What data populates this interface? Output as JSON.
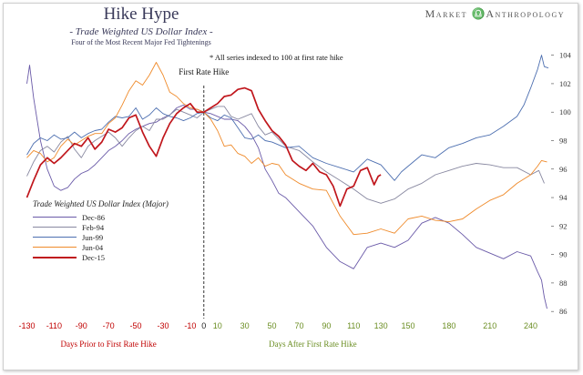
{
  "brand": {
    "left": "Market",
    "right": "Anthropology"
  },
  "chart_data": {
    "type": "line",
    "title": "Hike Hype",
    "subtitle": "- Trade Weighted US Dollar Index -",
    "note": "Four of the Most Recent Major Fed Tightenings",
    "annotation": "* All series indexed to 100 at first rate hike",
    "event_label": "First Rate Hike",
    "event_x": 0,
    "xlim": [
      -135,
      255
    ],
    "ylim": [
      85.5,
      105
    ],
    "x_ticks": [
      -130,
      -110,
      -90,
      -70,
      -50,
      -30,
      -10,
      0,
      10,
      30,
      50,
      70,
      90,
      110,
      130,
      150,
      180,
      210,
      240
    ],
    "y_ticks": [
      86,
      88,
      90,
      92,
      94,
      96,
      98,
      100,
      102,
      104
    ],
    "xlabel_left": "Days Prior to First Rate Hike",
    "xlabel_right": "Days After First Rate Hike",
    "legend_title": "Trade Weighted US Dollar Index (Major)",
    "legend_position": "middle-left",
    "colors": {
      "negative_axis": "#c00000",
      "positive_axis": "#6b8e23"
    },
    "series": [
      {
        "name": "Dec-86",
        "color": "#6a5aa8",
        "width": 0.9,
        "points": [
          [
            -130,
            102
          ],
          [
            -128,
            103.3
          ],
          [
            -125,
            101
          ],
          [
            -120,
            98
          ],
          [
            -115,
            96
          ],
          [
            -110,
            94.8
          ],
          [
            -105,
            94.5
          ],
          [
            -100,
            94.7
          ],
          [
            -95,
            95.3
          ],
          [
            -90,
            95.7
          ],
          [
            -85,
            95.9
          ],
          [
            -80,
            96.3
          ],
          [
            -75,
            96.8
          ],
          [
            -70,
            97.3
          ],
          [
            -65,
            97.6
          ],
          [
            -60,
            98
          ],
          [
            -55,
            98.5
          ],
          [
            -50,
            98.8
          ],
          [
            -45,
            99
          ],
          [
            -40,
            99.2
          ],
          [
            -35,
            99.3
          ],
          [
            -30,
            99.6
          ],
          [
            -25,
            99.8
          ],
          [
            -20,
            100.3
          ],
          [
            -15,
            100.5
          ],
          [
            -10,
            100.2
          ],
          [
            -5,
            100.2
          ],
          [
            0,
            100
          ],
          [
            5,
            99.9
          ],
          [
            10,
            99.7
          ],
          [
            15,
            99.5
          ],
          [
            20,
            99.5
          ],
          [
            25,
            99.4
          ],
          [
            30,
            99
          ],
          [
            35,
            98.4
          ],
          [
            40,
            97.5
          ],
          [
            45,
            96
          ],
          [
            50,
            95.2
          ],
          [
            55,
            94.3
          ],
          [
            60,
            94
          ],
          [
            70,
            93
          ],
          [
            80,
            92
          ],
          [
            90,
            90.5
          ],
          [
            100,
            89.5
          ],
          [
            110,
            89
          ],
          [
            120,
            90.5
          ],
          [
            130,
            90.8
          ],
          [
            140,
            90.5
          ],
          [
            150,
            91
          ],
          [
            160,
            92.2
          ],
          [
            170,
            92.6
          ],
          [
            180,
            92.2
          ],
          [
            190,
            91.4
          ],
          [
            200,
            90.5
          ],
          [
            210,
            90.1
          ],
          [
            220,
            89.7
          ],
          [
            230,
            90.2
          ],
          [
            240,
            89.9
          ],
          [
            245,
            88.8
          ],
          [
            248,
            88.2
          ],
          [
            250,
            87
          ],
          [
            252,
            86.2
          ]
        ]
      },
      {
        "name": "Feb-94",
        "color": "#8888a0",
        "width": 0.9,
        "points": [
          [
            -130,
            95.5
          ],
          [
            -125,
            96.5
          ],
          [
            -120,
            97.3
          ],
          [
            -115,
            97.6
          ],
          [
            -110,
            97.2
          ],
          [
            -105,
            97.9
          ],
          [
            -100,
            98.3
          ],
          [
            -95,
            97.4
          ],
          [
            -90,
            96.8
          ],
          [
            -85,
            97.6
          ],
          [
            -80,
            98
          ],
          [
            -75,
            98.3
          ],
          [
            -70,
            98.6
          ],
          [
            -65,
            98.2
          ],
          [
            -60,
            97.6
          ],
          [
            -55,
            98.2
          ],
          [
            -50,
            98.7
          ],
          [
            -45,
            99
          ],
          [
            -40,
            98.7
          ],
          [
            -35,
            99.5
          ],
          [
            -30,
            99.5
          ],
          [
            -25,
            99.8
          ],
          [
            -20,
            100.2
          ],
          [
            -15,
            100
          ],
          [
            -10,
            99.8
          ],
          [
            -5,
            99.6
          ],
          [
            0,
            100
          ],
          [
            5,
            100.2
          ],
          [
            10,
            100.4
          ],
          [
            15,
            100.4
          ],
          [
            20,
            99.7
          ],
          [
            25,
            99.5
          ],
          [
            30,
            99.7
          ],
          [
            35,
            99.9
          ],
          [
            40,
            99
          ],
          [
            45,
            98.4
          ],
          [
            50,
            98.6
          ],
          [
            55,
            98.1
          ],
          [
            60,
            97.6
          ],
          [
            70,
            97.3
          ],
          [
            80,
            96.5
          ],
          [
            90,
            95.8
          ],
          [
            100,
            95.2
          ],
          [
            110,
            94.6
          ],
          [
            120,
            93.9
          ],
          [
            130,
            93.6
          ],
          [
            140,
            93.9
          ],
          [
            150,
            94.6
          ],
          [
            160,
            95
          ],
          [
            170,
            95.6
          ],
          [
            180,
            95.9
          ],
          [
            190,
            96.2
          ],
          [
            200,
            96.4
          ],
          [
            210,
            96.3
          ],
          [
            220,
            96.1
          ],
          [
            230,
            96.1
          ],
          [
            240,
            95.6
          ],
          [
            246,
            95.9
          ],
          [
            250,
            95
          ]
        ]
      },
      {
        "name": "Jun-99",
        "color": "#4d6fb0",
        "width": 0.9,
        "points": [
          [
            -130,
            97
          ],
          [
            -125,
            97.8
          ],
          [
            -120,
            98.2
          ],
          [
            -115,
            98
          ],
          [
            -110,
            98.4
          ],
          [
            -105,
            98.1
          ],
          [
            -100,
            98.2
          ],
          [
            -95,
            98.6
          ],
          [
            -90,
            98.2
          ],
          [
            -85,
            98.5
          ],
          [
            -80,
            98.7
          ],
          [
            -75,
            98.8
          ],
          [
            -70,
            99.3
          ],
          [
            -65,
            99.7
          ],
          [
            -60,
            99.6
          ],
          [
            -55,
            99.7
          ],
          [
            -50,
            100.3
          ],
          [
            -45,
            99.5
          ],
          [
            -40,
            99.8
          ],
          [
            -35,
            100.3
          ],
          [
            -30,
            99.9
          ],
          [
            -25,
            99.7
          ],
          [
            -20,
            99.6
          ],
          [
            -15,
            99.4
          ],
          [
            -10,
            99.6
          ],
          [
            -5,
            99.9
          ],
          [
            0,
            100
          ],
          [
            5,
            99.6
          ],
          [
            10,
            99.4
          ],
          [
            15,
            99.8
          ],
          [
            20,
            99.6
          ],
          [
            25,
            98.9
          ],
          [
            30,
            98.2
          ],
          [
            35,
            98.1
          ],
          [
            40,
            98.4
          ],
          [
            45,
            98
          ],
          [
            50,
            97.9
          ],
          [
            55,
            97.7
          ],
          [
            60,
            97.5
          ],
          [
            70,
            97.6
          ],
          [
            80,
            96.8
          ],
          [
            90,
            96.4
          ],
          [
            100,
            96.1
          ],
          [
            110,
            95.8
          ],
          [
            120,
            96.7
          ],
          [
            130,
            96.3
          ],
          [
            140,
            95.2
          ],
          [
            145,
            95.8
          ],
          [
            150,
            96.2
          ],
          [
            160,
            97
          ],
          [
            170,
            96.8
          ],
          [
            180,
            97.5
          ],
          [
            190,
            97.8
          ],
          [
            200,
            98.2
          ],
          [
            210,
            98.4
          ],
          [
            220,
            99
          ],
          [
            230,
            99.7
          ],
          [
            235,
            100.5
          ],
          [
            240,
            101.7
          ],
          [
            245,
            103
          ],
          [
            248,
            104
          ],
          [
            250,
            103.2
          ],
          [
            253,
            103.1
          ]
        ]
      },
      {
        "name": "Jun-04",
        "color": "#ef8a2a",
        "width": 0.9,
        "points": [
          [
            -130,
            96.8
          ],
          [
            -125,
            97.3
          ],
          [
            -120,
            97.1
          ],
          [
            -115,
            96.5
          ],
          [
            -110,
            96.8
          ],
          [
            -105,
            97.6
          ],
          [
            -100,
            98.1
          ],
          [
            -95,
            97.7
          ],
          [
            -90,
            98
          ],
          [
            -85,
            98.3
          ],
          [
            -80,
            98.5
          ],
          [
            -75,
            98.5
          ],
          [
            -70,
            99.2
          ],
          [
            -65,
            99.6
          ],
          [
            -60,
            100.5
          ],
          [
            -55,
            101.5
          ],
          [
            -50,
            102.2
          ],
          [
            -45,
            101.9
          ],
          [
            -40,
            102.6
          ],
          [
            -35,
            103.5
          ],
          [
            -30,
            102.6
          ],
          [
            -25,
            101.4
          ],
          [
            -20,
            101.1
          ],
          [
            -15,
            100.6
          ],
          [
            -10,
            100.3
          ],
          [
            -5,
            100.2
          ],
          [
            0,
            100
          ],
          [
            5,
            99.5
          ],
          [
            10,
            98.7
          ],
          [
            15,
            97.6
          ],
          [
            20,
            97.7
          ],
          [
            25,
            97.1
          ],
          [
            30,
            96.9
          ],
          [
            35,
            96.4
          ],
          [
            40,
            96.8
          ],
          [
            45,
            96.2
          ],
          [
            50,
            96.4
          ],
          [
            55,
            96.3
          ],
          [
            60,
            95.6
          ],
          [
            70,
            95
          ],
          [
            80,
            94.6
          ],
          [
            90,
            94.5
          ],
          [
            100,
            92.7
          ],
          [
            110,
            91.4
          ],
          [
            120,
            91.5
          ],
          [
            130,
            91.8
          ],
          [
            140,
            91.5
          ],
          [
            150,
            92.5
          ],
          [
            160,
            92.7
          ],
          [
            170,
            92.4
          ],
          [
            180,
            92.3
          ],
          [
            190,
            92.5
          ],
          [
            200,
            93.2
          ],
          [
            210,
            93.8
          ],
          [
            220,
            94.2
          ],
          [
            230,
            95
          ],
          [
            240,
            95.6
          ],
          [
            245,
            96.2
          ],
          [
            248,
            96.6
          ],
          [
            252,
            96.5
          ]
        ]
      },
      {
        "name": "Dec-15",
        "color": "#c0161c",
        "width": 1.7,
        "points": [
          [
            -130,
            94
          ],
          [
            -125,
            95.2
          ],
          [
            -120,
            96.3
          ],
          [
            -115,
            96.8
          ],
          [
            -110,
            96.4
          ],
          [
            -105,
            96.8
          ],
          [
            -100,
            97.3
          ],
          [
            -95,
            97.8
          ],
          [
            -90,
            97.6
          ],
          [
            -85,
            98.2
          ],
          [
            -80,
            97.4
          ],
          [
            -75,
            97.9
          ],
          [
            -70,
            98.8
          ],
          [
            -65,
            98.6
          ],
          [
            -60,
            98.9
          ],
          [
            -55,
            99.6
          ],
          [
            -50,
            99.8
          ],
          [
            -45,
            98.6
          ],
          [
            -40,
            97.6
          ],
          [
            -35,
            96.9
          ],
          [
            -30,
            98.2
          ],
          [
            -25,
            99.2
          ],
          [
            -20,
            99.9
          ],
          [
            -15,
            100.3
          ],
          [
            -10,
            100.6
          ],
          [
            -5,
            100
          ],
          [
            0,
            100
          ],
          [
            5,
            100.3
          ],
          [
            10,
            100.6
          ],
          [
            15,
            101.1
          ],
          [
            20,
            101.2
          ],
          [
            25,
            101.6
          ],
          [
            30,
            101.7
          ],
          [
            35,
            101.5
          ],
          [
            40,
            100.2
          ],
          [
            45,
            99.4
          ],
          [
            50,
            98.7
          ],
          [
            55,
            98.3
          ],
          [
            60,
            97.7
          ],
          [
            65,
            96.6
          ],
          [
            70,
            96.2
          ],
          [
            75,
            95.9
          ],
          [
            80,
            96.4
          ],
          [
            85,
            95.8
          ],
          [
            90,
            95.6
          ],
          [
            95,
            94.8
          ],
          [
            100,
            93.4
          ],
          [
            105,
            94.6
          ],
          [
            110,
            94.8
          ],
          [
            115,
            95.9
          ],
          [
            120,
            96.1
          ],
          [
            125,
            94.9
          ],
          [
            128,
            95.5
          ],
          [
            130,
            95.6
          ]
        ]
      }
    ]
  }
}
